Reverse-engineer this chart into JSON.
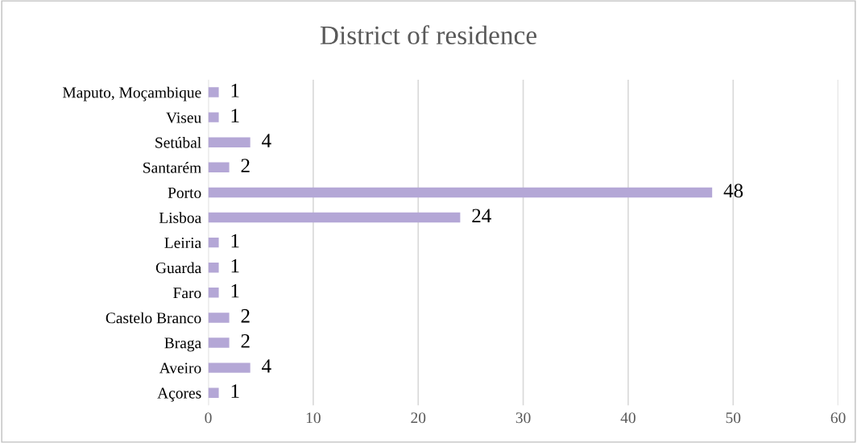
{
  "chart_data": {
    "type": "bar",
    "orientation": "horizontal",
    "title": "District of residence",
    "categories": [
      "Maputo, Moçambique",
      "Viseu",
      "Setúbal",
      "Santarém",
      "Porto",
      "Lisboa",
      "Leiria",
      "Guarda",
      "Faro",
      "Castelo Branco",
      "Braga",
      "Aveiro",
      "Açores"
    ],
    "values": [
      1,
      1,
      4,
      2,
      48,
      24,
      1,
      1,
      1,
      2,
      2,
      4,
      1
    ],
    "color": "#b4a7d6",
    "xlim": [
      0,
      60
    ],
    "xticks": [
      0,
      10,
      20,
      30,
      40,
      50,
      60
    ],
    "grid": "x",
    "data_labels": true,
    "legend": false
  }
}
